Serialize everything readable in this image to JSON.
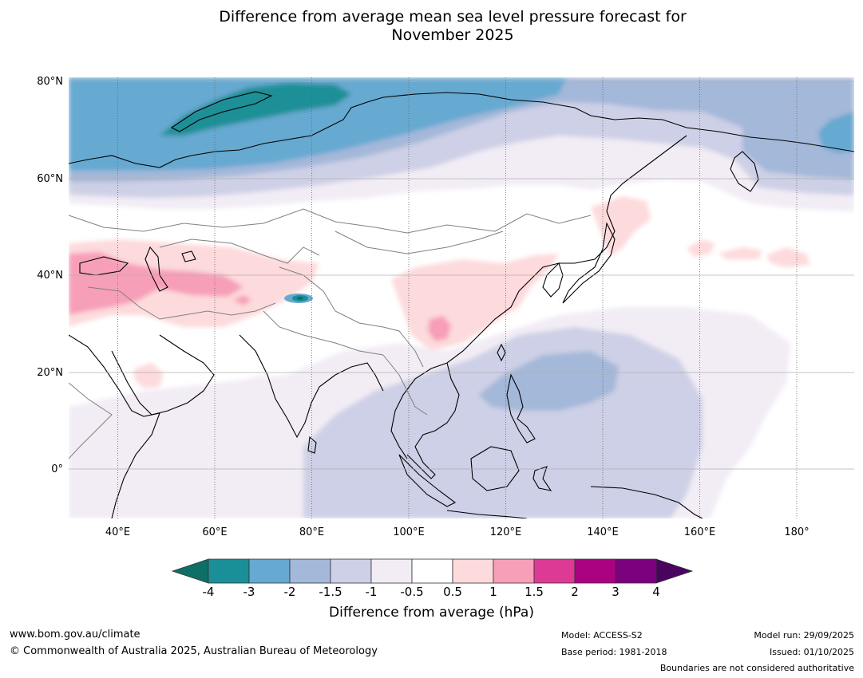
{
  "title": {
    "line1": "Difference from average mean sea level pressure forecast for",
    "line2": "November 2025"
  },
  "map": {
    "latitude_labels": [
      "80°N",
      "60°N",
      "40°N",
      "20°N",
      "0°"
    ],
    "longitude_labels": [
      "40°E",
      "60°E",
      "80°E",
      "100°E",
      "120°E",
      "140°E",
      "160°E",
      "180°"
    ],
    "colors": {
      "ocean": "#ffffff",
      "coast": "#000000",
      "border": "#808080",
      "grid": "#9a9a9a"
    }
  },
  "colorbar": {
    "ticks": [
      "-4",
      "-3",
      "-2",
      "-1.5",
      "-1",
      "-0.5",
      "0.5",
      "1",
      "1.5",
      "2",
      "3",
      "4"
    ],
    "colors": [
      "#0e6f66",
      "#1a8f97",
      "#66a9d1",
      "#a4b8d9",
      "#cdd0e6",
      "#f2ecf5",
      "#ffffff",
      "#fddadc",
      "#f79fb8",
      "#dc3a95",
      "#ab0282",
      "#7b027d",
      "#4a0460"
    ],
    "label": "Difference from average (hPa)"
  },
  "footer": {
    "website": "www.bom.gov.au/climate",
    "copyright": "© Commonwealth of Australia 2025, Australian Bureau of Meteorology",
    "model": "Model: ACCESS-S2",
    "base_period": "Base period: 1981-2018",
    "model_run": "Model run: 29/09/2025",
    "issued": "Issued: 01/10/2025",
    "disclaimer": "Boundaries are not considered authoritative"
  }
}
